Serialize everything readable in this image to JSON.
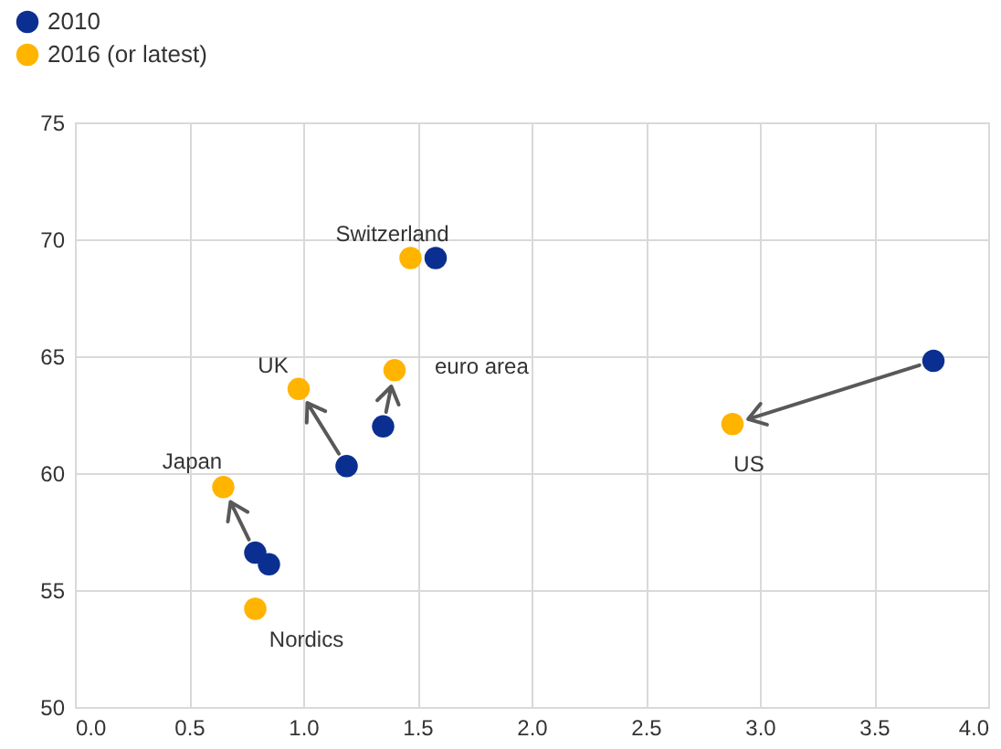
{
  "chart_data": {
    "type": "scatter",
    "series": [
      {
        "name": "2010",
        "color": "#0b2f91",
        "x": [
          1.58,
          1.35,
          1.19,
          0.79,
          0.85,
          3.76
        ],
        "values": [
          69.2,
          62.0,
          60.3,
          56.6,
          56.1,
          64.8
        ]
      },
      {
        "name": "2016 (or latest)",
        "color": "#ffb400",
        "x": [
          1.47,
          1.4,
          0.98,
          0.65,
          0.79,
          2.88
        ],
        "values": [
          69.2,
          64.4,
          63.6,
          59.4,
          54.2,
          62.1
        ]
      }
    ],
    "annotations": [
      {
        "text": "Switzerland",
        "x": 1.47,
        "y": 69.2
      },
      {
        "text": "euro area",
        "x": 1.4,
        "y": 64.4
      },
      {
        "text": "UK",
        "x": 0.98,
        "y": 63.6
      },
      {
        "text": "Japan",
        "x": 0.65,
        "y": 59.4
      },
      {
        "text": "Nordics",
        "x": 0.79,
        "y": 54.2
      },
      {
        "text": "US",
        "x": 2.88,
        "y": 62.1
      }
    ],
    "xlim": [
      0.0,
      4.0
    ],
    "xticks": [
      {
        "value": 0,
        "label": "0.0"
      },
      {
        "value": 0.5,
        "label": "0.5"
      },
      {
        "value": 1,
        "label": "1.0"
      },
      {
        "value": 1.5,
        "label": "1.5"
      },
      {
        "value": 2,
        "label": "2.0"
      },
      {
        "value": 2.5,
        "label": "2.5"
      },
      {
        "value": 3,
        "label": "3.0"
      },
      {
        "value": 3.5,
        "label": "3.5"
      },
      {
        "value": 4,
        "label": "4.0"
      }
    ],
    "ylim": [
      50,
      75
    ],
    "yticks": [
      50,
      55,
      60,
      65,
      70,
      75
    ],
    "grid": true,
    "legend": "top left",
    "marker": "circle"
  }
}
